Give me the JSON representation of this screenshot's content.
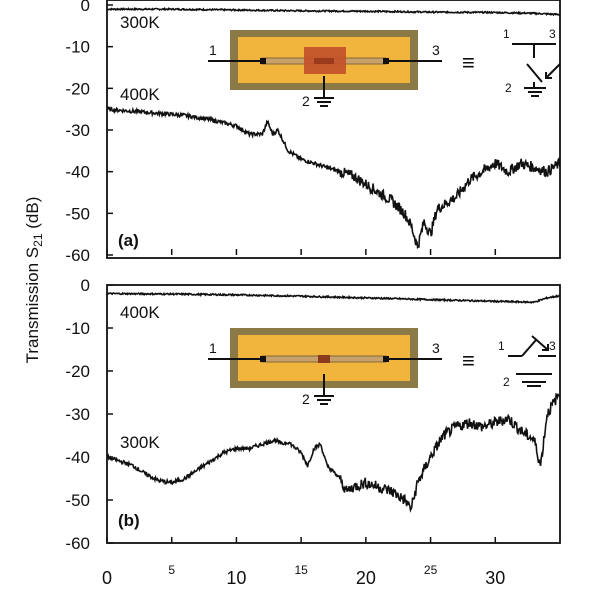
{
  "ylabel": "Transmission S21 (dB)",
  "ylabel_parts": {
    "main": "Transmission S",
    "sub": "21",
    "unit": " (dB)"
  },
  "colors": {
    "trace": "#111111",
    "die_outer": "#8b7a46",
    "die_inner": "#f1b43c",
    "die_strip": "#c8a06a",
    "heated_region_a": "#c2502a",
    "heated_region_b": "#8a3b1e",
    "wire": "#111111"
  },
  "chart_data": [
    {
      "type": "line",
      "panel_label": "(a)",
      "xlim": [
        0,
        35
      ],
      "ylim": [
        -60,
        0
      ],
      "yticks": [
        0,
        -10,
        -20,
        -30,
        -40,
        -50,
        -60
      ],
      "xtick_labels_shown": false,
      "series": [
        {
          "name": "300K",
          "x": [
            0,
            5,
            10,
            15,
            20,
            25,
            30,
            33,
            35
          ],
          "y": [
            -1,
            -1,
            -1.2,
            -1.4,
            -1.5,
            -1.7,
            -1.8,
            -2.0,
            -2.3
          ]
        },
        {
          "name": "400K",
          "x": [
            0,
            2,
            4,
            6,
            8,
            10,
            11,
            12,
            12.4,
            12.8,
            13.2,
            14,
            15,
            16,
            17,
            18,
            19,
            20,
            21,
            22,
            23,
            23.5,
            24,
            24.5,
            25,
            25.5,
            26,
            27,
            28,
            29,
            30,
            31,
            32,
            33,
            34,
            35
          ],
          "y": [
            -25,
            -25.5,
            -26,
            -26.5,
            -27.5,
            -29,
            -31,
            -31,
            -28,
            -31,
            -30,
            -35,
            -37,
            -38,
            -39,
            -40,
            -41,
            -43,
            -45,
            -47,
            -50,
            -53,
            -58,
            -52,
            -55,
            -49,
            -48,
            -46,
            -42,
            -40,
            -38,
            -40,
            -38,
            -39,
            -40,
            -38
          ]
        }
      ],
      "series_labels": [
        "300K",
        "400K"
      ],
      "inset": {
        "port_labels": [
          "1",
          "2",
          "3"
        ],
        "equiv_symbol": "≡",
        "switch_state": "closed-to-ground"
      }
    },
    {
      "type": "line",
      "panel_label": "(b)",
      "xlim": [
        0,
        35
      ],
      "ylim": [
        -60,
        0
      ],
      "yticks": [
        0,
        -10,
        -20,
        -30,
        -40,
        -50,
        -60
      ],
      "xticks": [
        0,
        5,
        10,
        15,
        20,
        25,
        30
      ],
      "xtick_labels": [
        "0",
        "5",
        "10",
        "15",
        "20",
        "25",
        "30"
      ],
      "series": [
        {
          "name": "400K",
          "x": [
            0,
            5,
            10,
            15,
            20,
            25,
            30,
            33,
            34,
            35
          ],
          "y": [
            -2,
            -2.1,
            -2.3,
            -2.6,
            -3,
            -3.4,
            -3.8,
            -4,
            -3,
            -2.5
          ]
        },
        {
          "name": "300K",
          "x": [
            0,
            1,
            2,
            3,
            4,
            5,
            6,
            7,
            8,
            9,
            10,
            11,
            12,
            13,
            13.5,
            14,
            15,
            15.5,
            16,
            16.5,
            17,
            18,
            18.5,
            19,
            20,
            21,
            22,
            23,
            23.5,
            24,
            25,
            26,
            27,
            28,
            29,
            30,
            31,
            32,
            33,
            33.5,
            34,
            35
          ],
          "y": [
            -40,
            -41,
            -42,
            -44,
            -45.5,
            -46,
            -45,
            -43,
            -41,
            -39,
            -38,
            -38,
            -37,
            -36,
            -37,
            -36.5,
            -39,
            -42,
            -38,
            -37,
            -42,
            -45,
            -48,
            -47,
            -46,
            -47,
            -48,
            -50,
            -52,
            -46,
            -40,
            -35,
            -33,
            -32,
            -33,
            -32,
            -31,
            -34,
            -36,
            -42,
            -30,
            -25
          ]
        }
      ],
      "series_labels": [
        "400K",
        "300K"
      ],
      "inset": {
        "port_labels": [
          "1",
          "2",
          "3"
        ],
        "equiv_symbol": "≡",
        "switch_state": "open-through"
      }
    }
  ]
}
